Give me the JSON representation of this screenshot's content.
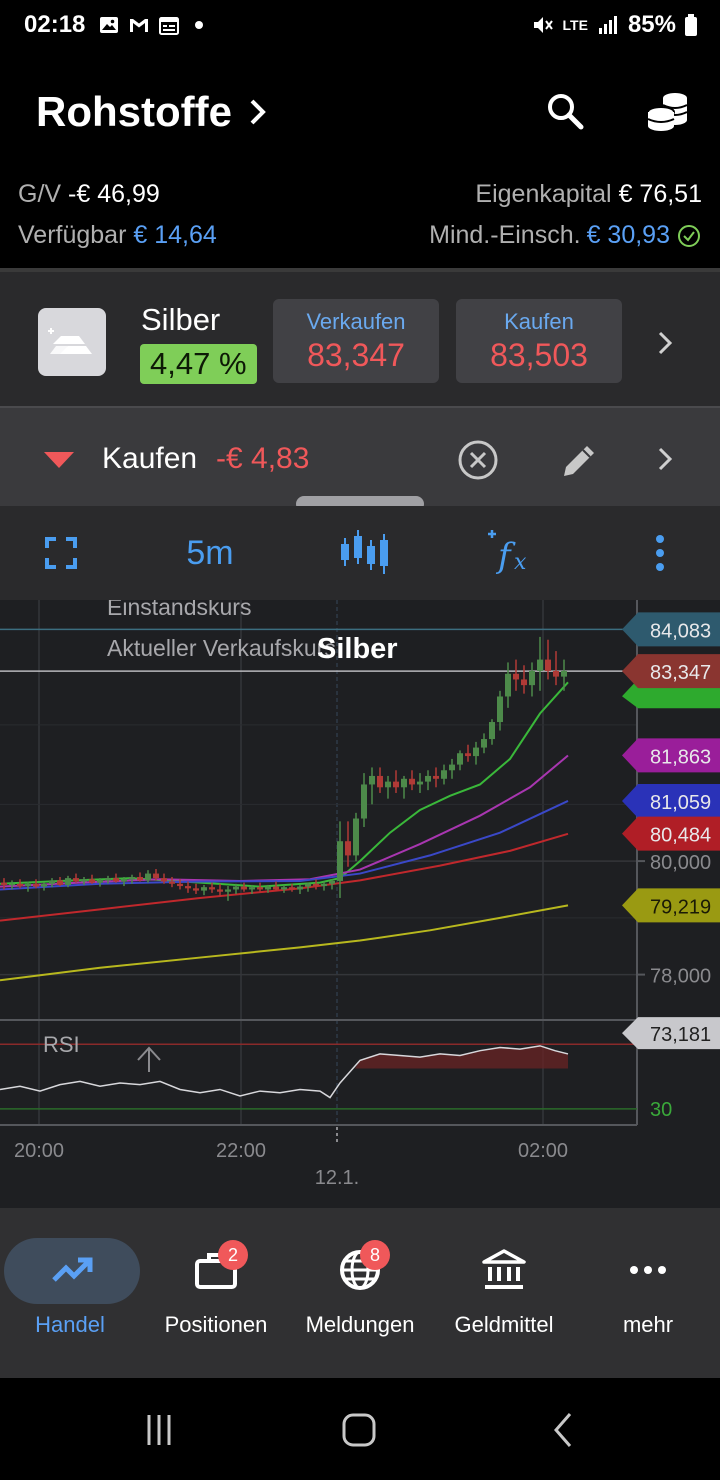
{
  "status_bar": {
    "time": "02:18",
    "network": "LTE",
    "battery": "85%"
  },
  "header": {
    "title": "Rohstoffe"
  },
  "account": {
    "pnl_label": "G/V",
    "pnl_value": "-€ 46,99",
    "equity_label": "Eigenkapital",
    "equity_value": "€ 76,51",
    "available_label": "Verfügbar",
    "available_value": "€ 14,64",
    "margin_label": "Mind.-Einsch.",
    "margin_value": "€ 30,93"
  },
  "instrument": {
    "name": "Silber",
    "change": "4,47 %",
    "sell_label": "Verkaufen",
    "sell_price": "83,347",
    "buy_label": "Kaufen",
    "buy_price": "83,503"
  },
  "position": {
    "direction_label": "Kaufen",
    "pnl": "-€ 4,83"
  },
  "toolbar": {
    "interval": "5m"
  },
  "chart_data": {
    "type": "candlestick",
    "title": "Silber",
    "legend": [
      "Einstandskurs",
      "Aktueller Verkaufskurs"
    ],
    "price_ticks": [
      "80,000",
      "78,000"
    ],
    "time_ticks": [
      "20:00",
      "22:00",
      "02:00"
    ],
    "date_marker": "12.1.",
    "ylim": [
      77.2,
      84.6
    ],
    "levels": [
      {
        "label": "84,083",
        "value": 84.083,
        "color": "#2e5a6e",
        "kind": "entry"
      },
      {
        "label": "83,347",
        "value": 83.347,
        "color": "#8a3530",
        "kind": "current"
      },
      {
        "label": "81,863",
        "value": 81.863,
        "color": "#9a1e9a",
        "kind": "ma"
      },
      {
        "label": "81,059",
        "value": 81.059,
        "color": "#2a32b8",
        "kind": "ma"
      },
      {
        "label": "80,484",
        "value": 80.484,
        "color": "#b01e26",
        "kind": "ma"
      },
      {
        "label": "79,219",
        "value": 79.219,
        "color": "#9a9a12",
        "kind": "ma"
      }
    ],
    "moving_averages": [
      {
        "color": "#3ab83a",
        "points": [
          [
            0,
            79.6
          ],
          [
            60,
            79.65
          ],
          [
            130,
            79.7
          ],
          [
            200,
            79.62
          ],
          [
            260,
            79.55
          ],
          [
            320,
            79.62
          ],
          [
            340,
            79.7
          ],
          [
            360,
            80.0
          ],
          [
            390,
            80.5
          ],
          [
            420,
            80.9
          ],
          [
            450,
            81.15
          ],
          [
            480,
            81.35
          ],
          [
            510,
            81.8
          ],
          [
            540,
            82.6
          ],
          [
            568,
            83.15
          ]
        ]
      },
      {
        "color": "#a836b0",
        "points": [
          [
            0,
            79.55
          ],
          [
            80,
            79.62
          ],
          [
            160,
            79.68
          ],
          [
            240,
            79.65
          ],
          [
            310,
            79.68
          ],
          [
            360,
            79.85
          ],
          [
            420,
            80.3
          ],
          [
            480,
            80.8
          ],
          [
            530,
            81.3
          ],
          [
            568,
            81.86
          ]
        ]
      },
      {
        "color": "#3a48c8",
        "points": [
          [
            0,
            79.5
          ],
          [
            100,
            79.6
          ],
          [
            200,
            79.64
          ],
          [
            300,
            79.65
          ],
          [
            360,
            79.78
          ],
          [
            430,
            80.1
          ],
          [
            500,
            80.5
          ],
          [
            568,
            81.06
          ]
        ]
      },
      {
        "color": "#c0282c",
        "points": [
          [
            0,
            78.95
          ],
          [
            100,
            79.15
          ],
          [
            200,
            79.35
          ],
          [
            300,
            79.52
          ],
          [
            360,
            79.66
          ],
          [
            440,
            79.92
          ],
          [
            510,
            80.18
          ],
          [
            568,
            80.48
          ]
        ]
      },
      {
        "color": "#b8b81e",
        "points": [
          [
            0,
            77.9
          ],
          [
            100,
            78.12
          ],
          [
            200,
            78.3
          ],
          [
            300,
            78.48
          ],
          [
            360,
            78.6
          ],
          [
            430,
            78.78
          ],
          [
            500,
            79.0
          ],
          [
            568,
            79.22
          ]
        ]
      }
    ],
    "candles": [
      [
        4,
        79.62,
        79.7,
        79.5,
        79.58
      ],
      [
        12,
        79.58,
        79.66,
        79.5,
        79.6
      ],
      [
        20,
        79.6,
        79.68,
        79.52,
        79.56
      ],
      [
        28,
        79.56,
        79.64,
        79.46,
        79.6
      ],
      [
        36,
        79.6,
        79.68,
        79.52,
        79.55
      ],
      [
        44,
        79.55,
        79.62,
        79.48,
        79.6
      ],
      [
        52,
        79.6,
        79.7,
        79.54,
        79.66
      ],
      [
        60,
        79.66,
        79.72,
        79.56,
        79.58
      ],
      [
        68,
        79.58,
        79.74,
        79.54,
        79.7
      ],
      [
        76,
        79.7,
        79.78,
        79.62,
        79.64
      ],
      [
        84,
        79.64,
        79.72,
        79.58,
        79.68
      ],
      [
        92,
        79.68,
        79.76,
        79.6,
        79.62
      ],
      [
        100,
        79.62,
        79.7,
        79.55,
        79.66
      ],
      [
        108,
        79.66,
        79.74,
        79.6,
        79.7
      ],
      [
        116,
        79.7,
        79.78,
        79.62,
        79.64
      ],
      [
        124,
        79.64,
        79.72,
        79.56,
        79.68
      ],
      [
        132,
        79.68,
        79.76,
        79.6,
        79.72
      ],
      [
        140,
        79.72,
        79.8,
        79.64,
        79.66
      ],
      [
        148,
        79.66,
        79.84,
        79.62,
        79.78
      ],
      [
        156,
        79.78,
        79.86,
        79.66,
        79.7
      ],
      [
        164,
        79.7,
        79.78,
        79.6,
        79.64
      ],
      [
        172,
        79.64,
        79.72,
        79.54,
        79.6
      ],
      [
        180,
        79.6,
        79.68,
        79.5,
        79.56
      ],
      [
        188,
        79.56,
        79.64,
        79.44,
        79.52
      ],
      [
        196,
        79.52,
        79.6,
        79.42,
        79.48
      ],
      [
        204,
        79.48,
        79.58,
        79.4,
        79.54
      ],
      [
        212,
        79.54,
        79.62,
        79.44,
        79.5
      ],
      [
        220,
        79.5,
        79.6,
        79.38,
        79.46
      ],
      [
        228,
        79.46,
        79.56,
        79.3,
        79.5
      ],
      [
        236,
        79.5,
        79.6,
        79.42,
        79.55
      ],
      [
        244,
        79.55,
        79.62,
        79.46,
        79.5
      ],
      [
        252,
        79.5,
        79.58,
        79.42,
        79.54
      ],
      [
        260,
        79.54,
        79.62,
        79.46,
        79.5
      ],
      [
        268,
        79.5,
        79.58,
        79.44,
        79.55
      ],
      [
        276,
        79.55,
        79.64,
        79.48,
        79.5
      ],
      [
        284,
        79.5,
        79.58,
        79.44,
        79.54
      ],
      [
        292,
        79.54,
        79.6,
        79.46,
        79.5
      ],
      [
        300,
        79.5,
        79.58,
        79.42,
        79.55
      ],
      [
        308,
        79.55,
        79.62,
        79.46,
        79.6
      ],
      [
        316,
        79.6,
        79.68,
        79.5,
        79.56
      ],
      [
        324,
        79.56,
        79.64,
        79.48,
        79.6
      ],
      [
        332,
        79.6,
        79.68,
        79.5,
        79.65
      ],
      [
        340,
        79.65,
        80.7,
        79.35,
        80.35
      ],
      [
        348,
        80.35,
        80.7,
        79.9,
        80.1
      ],
      [
        356,
        80.1,
        80.85,
        80.0,
        80.75
      ],
      [
        364,
        80.75,
        81.55,
        80.6,
        81.35
      ],
      [
        372,
        81.35,
        81.65,
        81.0,
        81.5
      ],
      [
        380,
        81.5,
        81.65,
        81.2,
        81.3
      ],
      [
        388,
        81.3,
        81.5,
        81.1,
        81.4
      ],
      [
        396,
        81.4,
        81.6,
        81.2,
        81.3
      ],
      [
        404,
        81.3,
        81.5,
        81.1,
        81.45
      ],
      [
        412,
        81.45,
        81.6,
        81.25,
        81.35
      ],
      [
        420,
        81.35,
        81.55,
        81.2,
        81.4
      ],
      [
        428,
        81.4,
        81.6,
        81.25,
        81.5
      ],
      [
        436,
        81.5,
        81.65,
        81.3,
        81.45
      ],
      [
        444,
        81.45,
        81.7,
        81.35,
        81.6
      ],
      [
        452,
        81.6,
        81.8,
        81.45,
        81.7
      ],
      [
        460,
        81.7,
        81.95,
        81.6,
        81.9
      ],
      [
        468,
        81.9,
        82.05,
        81.75,
        81.85
      ],
      [
        476,
        81.85,
        82.1,
        81.7,
        82.0
      ],
      [
        484,
        82.0,
        82.25,
        81.9,
        82.15
      ],
      [
        492,
        82.15,
        82.5,
        82.05,
        82.45
      ],
      [
        500,
        82.45,
        83.0,
        82.3,
        82.9
      ],
      [
        508,
        82.9,
        83.5,
        82.7,
        83.3
      ],
      [
        516,
        83.3,
        83.55,
        83.0,
        83.2
      ],
      [
        524,
        83.2,
        83.45,
        82.95,
        83.1
      ],
      [
        532,
        83.1,
        83.5,
        82.9,
        83.35
      ],
      [
        540,
        83.35,
        83.95,
        83.0,
        83.55
      ],
      [
        548,
        83.55,
        83.9,
        83.2,
        83.35
      ],
      [
        556,
        83.35,
        83.7,
        83.1,
        83.25
      ],
      [
        564,
        83.25,
        83.55,
        83.0,
        83.35
      ]
    ],
    "rsi": {
      "label": "RSI",
      "levels": [
        {
          "label": "73,181",
          "value": 73.181
        },
        {
          "label": "30",
          "value": 30
        }
      ],
      "points": [
        [
          0,
          42
        ],
        [
          20,
          44
        ],
        [
          40,
          41
        ],
        [
          60,
          45
        ],
        [
          80,
          47
        ],
        [
          100,
          44
        ],
        [
          120,
          46
        ],
        [
          140,
          45
        ],
        [
          160,
          47
        ],
        [
          180,
          42
        ],
        [
          200,
          40
        ],
        [
          220,
          42
        ],
        [
          240,
          38
        ],
        [
          260,
          41
        ],
        [
          280,
          40
        ],
        [
          300,
          42
        ],
        [
          320,
          41
        ],
        [
          330,
          37
        ],
        [
          340,
          46
        ],
        [
          360,
          60
        ],
        [
          380,
          64
        ],
        [
          400,
          63
        ],
        [
          420,
          62
        ],
        [
          440,
          64
        ],
        [
          460,
          63
        ],
        [
          480,
          66
        ],
        [
          500,
          68
        ],
        [
          520,
          67
        ],
        [
          540,
          69
        ],
        [
          555,
          66
        ],
        [
          568,
          64
        ]
      ]
    }
  },
  "bottom_nav": [
    {
      "label": "Handel",
      "icon": "trend-up-icon",
      "active": true
    },
    {
      "label": "Positionen",
      "icon": "briefcase-icon",
      "badge": "2"
    },
    {
      "label": "Meldungen",
      "icon": "globe-icon",
      "badge": "8"
    },
    {
      "label": "Geldmittel",
      "icon": "bank-icon"
    },
    {
      "label": "mehr",
      "icon": "more-dots-icon"
    }
  ],
  "colors": {
    "accent": "#4a9df0",
    "negative": "#f0585a",
    "positive": "#7fce58",
    "chart_bg": "#1e1f22"
  }
}
